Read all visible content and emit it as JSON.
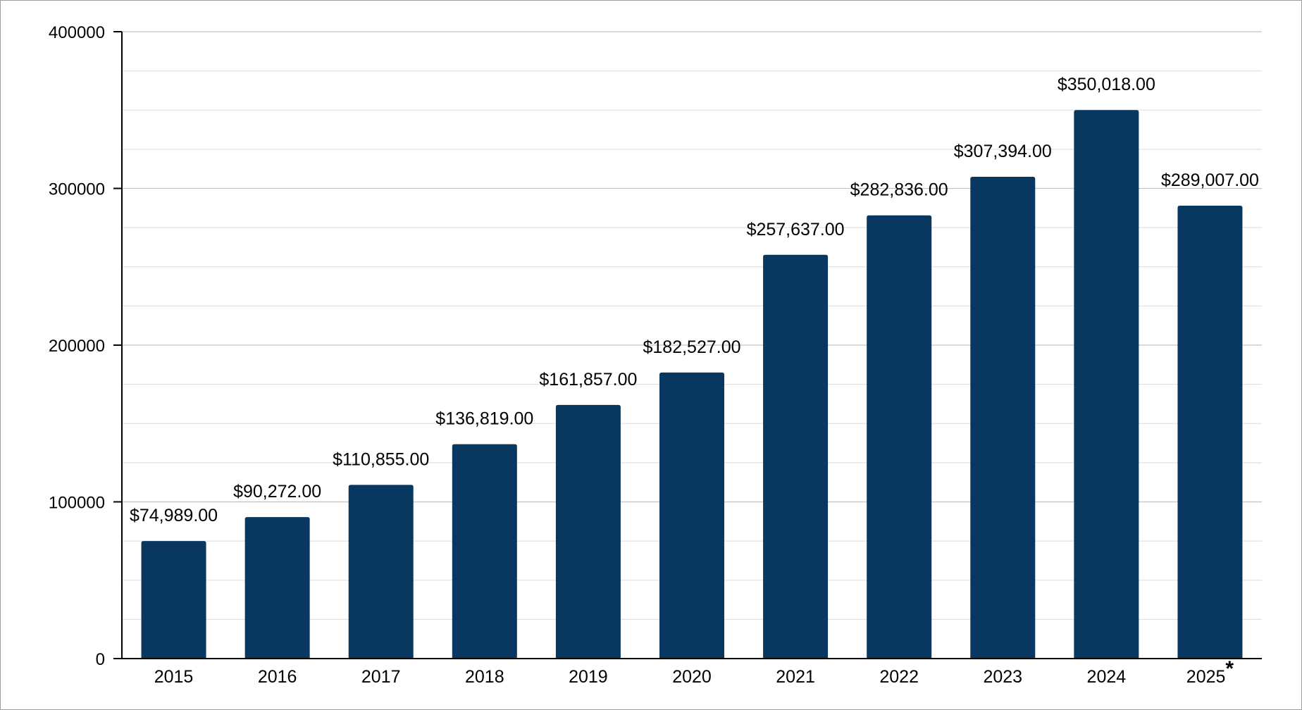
{
  "chart_data": {
    "type": "bar",
    "title": "",
    "xlabel": "",
    "ylabel": "",
    "categories": [
      "2015",
      "2016",
      "2017",
      "2018",
      "2019",
      "2020",
      "2021",
      "2022",
      "2023",
      "2024",
      "2025"
    ],
    "category_marks": [
      "",
      "",
      "",
      "",
      "",
      "",
      "",
      "",
      "",
      "",
      "*"
    ],
    "values": [
      74989,
      90272,
      110855,
      136819,
      161857,
      182527,
      257637,
      282836,
      307394,
      350018,
      289007
    ],
    "data_labels": [
      "$74,989.00",
      "$90,272.00",
      "$110,855.00",
      "$136,819.00",
      "$161,857.00",
      "$182,527.00",
      "$257,637.00",
      "$282,836.00",
      "$307,394.00",
      "$350,018.00",
      "$289,007.00"
    ],
    "ylim": [
      0,
      400000
    ],
    "yticks": [
      0,
      100000,
      200000,
      300000,
      400000
    ],
    "ytick_labels": [
      "0",
      "100000",
      "200000",
      "300000",
      "400000"
    ],
    "minor_gridlines_per_major": 3,
    "grid": true,
    "legend": "none",
    "bar_color": "#08375f",
    "major_grid_color": "#c4c4c4",
    "minor_grid_color": "#e2e2e2"
  }
}
